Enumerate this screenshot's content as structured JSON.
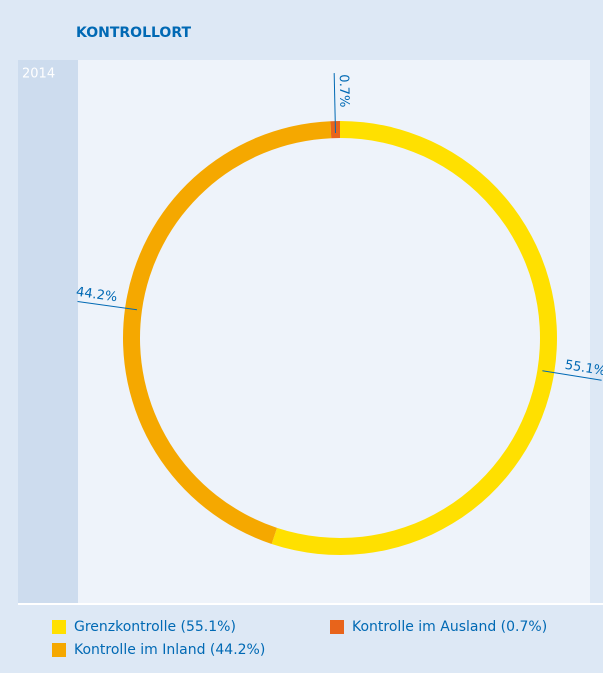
{
  "chart_data": {
    "type": "donut",
    "title": "KONTROLLORT",
    "subtitle": "2014",
    "categories": [
      "Grenzkontrolle (55.1%)",
      "Kontrolle im Inland (44.2%)",
      "Kontrolle im Ausland (0.7%)"
    ],
    "values": [
      55.1,
      44.2,
      0.7
    ],
    "value_labels": [
      "55.1%",
      "44.2%",
      "0.7%"
    ],
    "colors": [
      "#ffe000",
      "#f5a800",
      "#e8641b"
    ]
  }
}
